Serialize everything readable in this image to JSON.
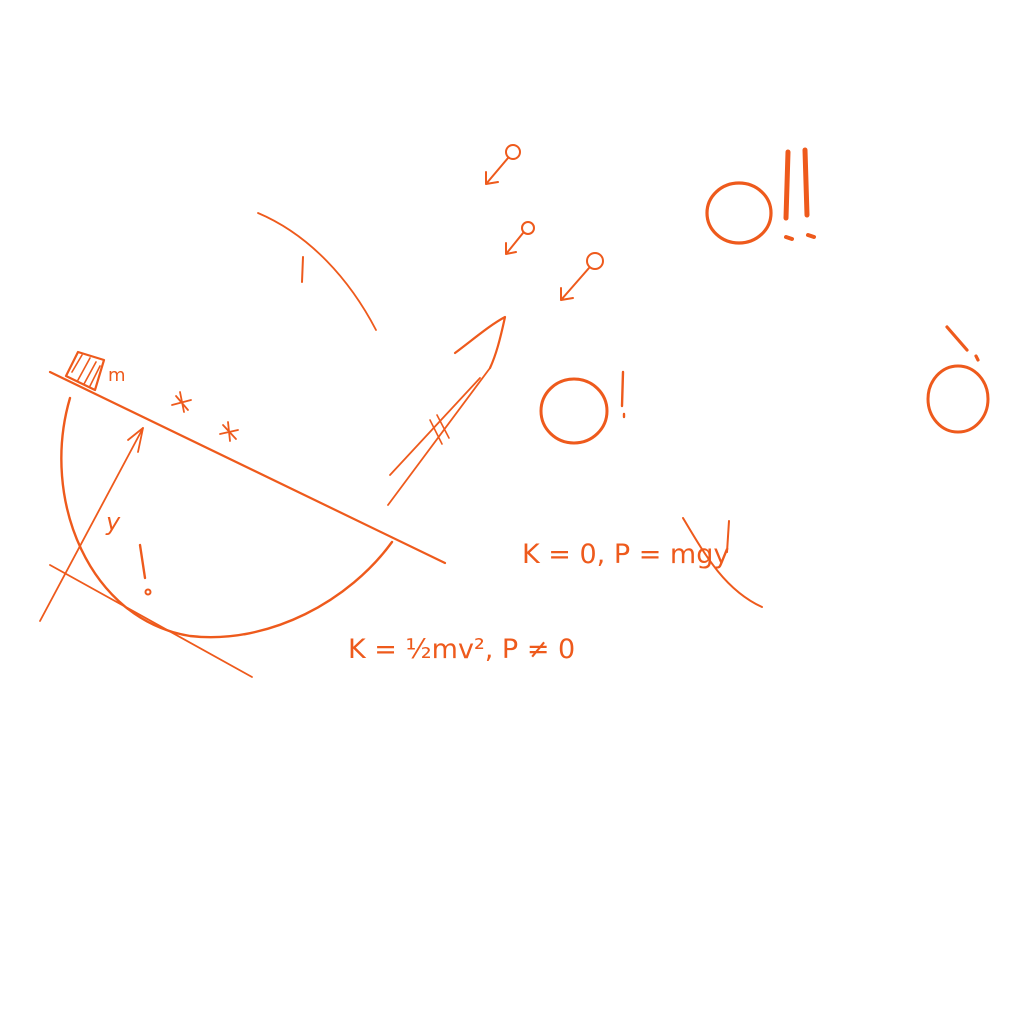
{
  "ink_color": "#ee5a1c",
  "labels": {
    "mass": "m",
    "height": "y",
    "top_equation": "K = 0, P = mgy",
    "bottom_equation": "K = ½mv², P ≠ 0"
  },
  "exclamations": {
    "big_o_double": "O!!",
    "big_o_single": "O!",
    "mark": "!"
  },
  "icons": [
    "hatched-block-icon",
    "star-icon",
    "star-icon",
    "pin-arrow-icon",
    "pin-arrow-icon",
    "pin-arrow-icon",
    "motion-arrow-icon",
    "falling-o-icon"
  ]
}
